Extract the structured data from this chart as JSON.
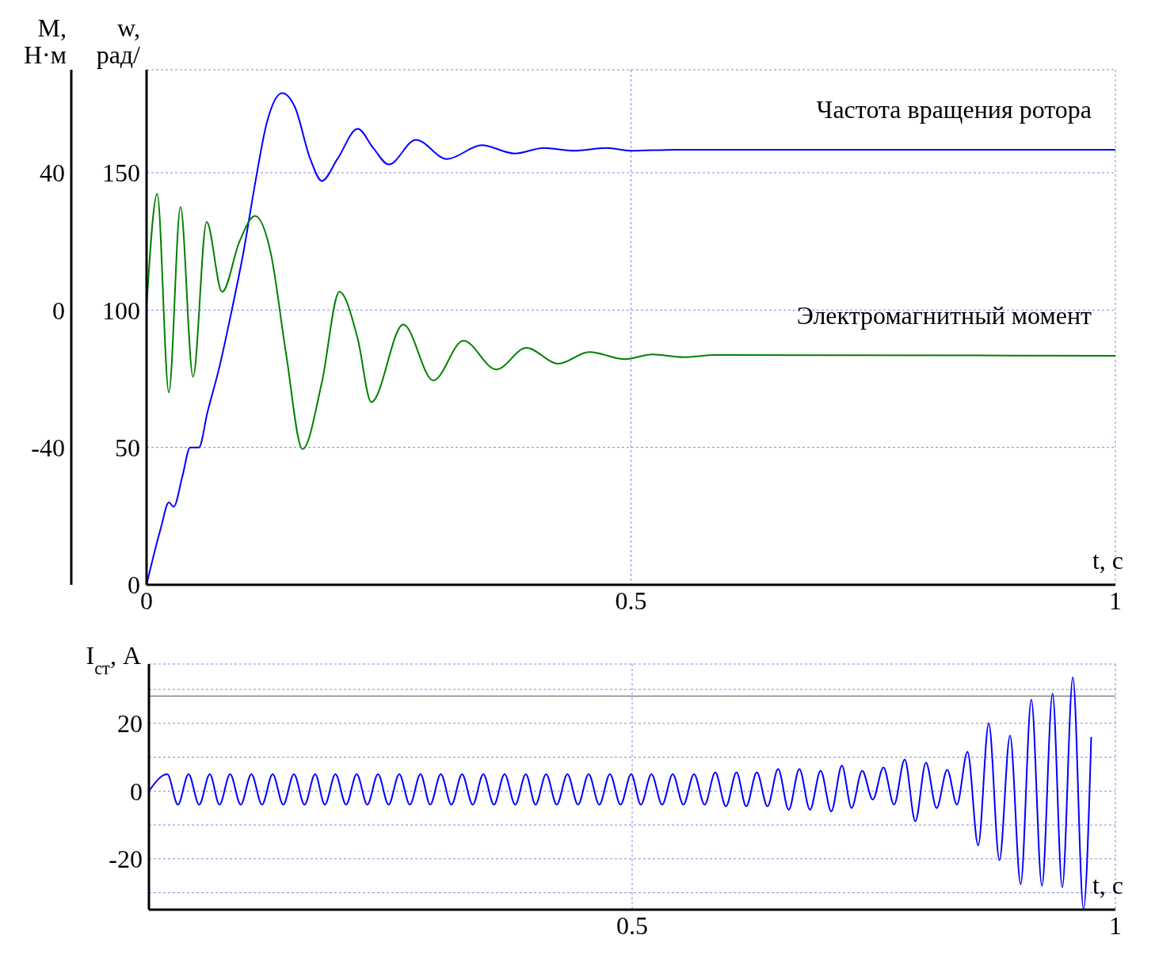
{
  "chart_data": [
    {
      "type": "line",
      "xlabel": "t, с",
      "ylabel": "w, рад/",
      "y2label": "M, Н·м",
      "xlim": [
        0,
        1
      ],
      "xticks": [
        0,
        0.5,
        1
      ],
      "ylim": [
        0,
        187.5
      ],
      "yticks": [
        0,
        50,
        100,
        150
      ],
      "y2lim": [
        -80,
        70
      ],
      "y2ticks": [
        -40,
        0,
        40
      ],
      "grid": true,
      "series": [
        {
          "name": "Частота вращения ротора",
          "color": "#0000ff",
          "axis": "y",
          "x": [
            0,
            0.015,
            0.023,
            0.028,
            0.037,
            0.045,
            0.054,
            0.063,
            0.075,
            0.088,
            0.1,
            0.112,
            0.124,
            0.14,
            0.153,
            0.169,
            0.181,
            0.197,
            0.218,
            0.234,
            0.25,
            0.278,
            0.31,
            0.346,
            0.38,
            0.41,
            0.441,
            0.475,
            0.5,
            0.546,
            1
          ],
          "values": [
            0,
            21,
            30,
            28.4,
            39.5,
            50,
            50,
            63,
            79,
            100,
            121,
            146,
            168,
            179,
            174,
            155,
            147,
            155,
            166,
            159,
            153,
            162,
            155,
            160,
            157,
            159,
            158,
            159,
            158,
            158.4,
            158.4
          ]
        },
        {
          "name": "Электромагнитный момент",
          "color": "#008000",
          "axis": "y2",
          "x": [
            0,
            0.011,
            0.023,
            0.035,
            0.048,
            0.062,
            0.078,
            0.096,
            0.112,
            0.128,
            0.144,
            0.161,
            0.181,
            0.199,
            0.218,
            0.232,
            0.265,
            0.296,
            0.327,
            0.361,
            0.392,
            0.425,
            0.457,
            0.494,
            0.522,
            0.554,
            0.587,
            1
          ],
          "values": [
            1,
            33.8,
            -24,
            30,
            -19.4,
            25.7,
            5.3,
            20,
            27.4,
            16.9,
            -12.7,
            -40.5,
            -21,
            5.3,
            -8.4,
            -26.8,
            -4.2,
            -20.5,
            -8.9,
            -17.3,
            -11,
            -15.6,
            -12.2,
            -14.3,
            -12.9,
            -13.7,
            -13.1,
            -13.3
          ]
        }
      ]
    },
    {
      "type": "line",
      "xlabel": "t, с",
      "ylabel": "I$_{ст}$, A",
      "xlim": [
        0,
        1
      ],
      "xticks": [
        0.5,
        1
      ],
      "ylim": [
        -35,
        37.5
      ],
      "yticks": [
        {
          "value": -30,
          "label": null
        },
        -20,
        {
          "value": -10,
          "label": null
        },
        0,
        {
          "value": 10,
          "label": null
        },
        20,
        {
          "value": 30,
          "label": null
        }
      ],
      "grid": true,
      "ref_lines": [
        {
          "axis": "y",
          "value": 28,
          "color": "#808080"
        }
      ],
      "series": [
        {
          "color": "#0000ff",
          "x": [
            0,
            0.019,
            0.03,
            0.041,
            0.052,
            0.063,
            0.073,
            0.084,
            0.095,
            0.106,
            0.117,
            0.128,
            0.139,
            0.15,
            0.161,
            0.172,
            0.182,
            0.193,
            0.204,
            0.215,
            0.226,
            0.237,
            0.248,
            0.259,
            0.27,
            0.281,
            0.291,
            0.302,
            0.313,
            0.324,
            0.335,
            0.346,
            0.357,
            0.368,
            0.379,
            0.39,
            0.4,
            0.411,
            0.422,
            0.433,
            0.444,
            0.455,
            0.466,
            0.477,
            0.488,
            0.499,
            0.509,
            0.52,
            0.531,
            0.542,
            0.553,
            0.564,
            0.575,
            0.586,
            0.597,
            0.608,
            0.618,
            0.629,
            0.64,
            0.651,
            0.662,
            0.673,
            0.684,
            0.695,
            0.706,
            0.717,
            0.727,
            0.738,
            0.749,
            0.76,
            0.771,
            0.782,
            0.793,
            0.804,
            0.815,
            0.826,
            0.836,
            0.847,
            0.858,
            0.869,
            0.88,
            0.891,
            0.902,
            0.913,
            0.924,
            0.935,
            0.945,
            0.956,
            0.967,
            0.975
          ],
          "values": [
            0,
            5,
            -4,
            5,
            -4,
            5,
            -4,
            5,
            -4,
            5,
            -4,
            5,
            -4,
            5,
            -4,
            5,
            -4,
            5,
            -4,
            5,
            -4,
            5,
            -4,
            5,
            -4,
            5,
            -4,
            5,
            -4,
            5,
            -4,
            5,
            -4,
            5,
            -4,
            5,
            -4,
            5,
            -4,
            5,
            -4,
            5,
            -4,
            5,
            -4,
            5,
            -4,
            5,
            -4,
            5,
            -4,
            5,
            -4,
            5.5,
            -4.5,
            5.5,
            -4.5,
            5.5,
            -4.5,
            6.5,
            -5.5,
            6.5,
            -5.5,
            6,
            -6,
            7.5,
            -5,
            6,
            -2.5,
            7,
            -4,
            9.3,
            -8.9,
            8.4,
            -5,
            6.3,
            -4,
            11.6,
            -16,
            20,
            -20.4,
            16.4,
            -27.5,
            27,
            -28,
            28.8,
            -28.4,
            33.6,
            -34.8,
            16
          ]
        }
      ]
    }
  ]
}
